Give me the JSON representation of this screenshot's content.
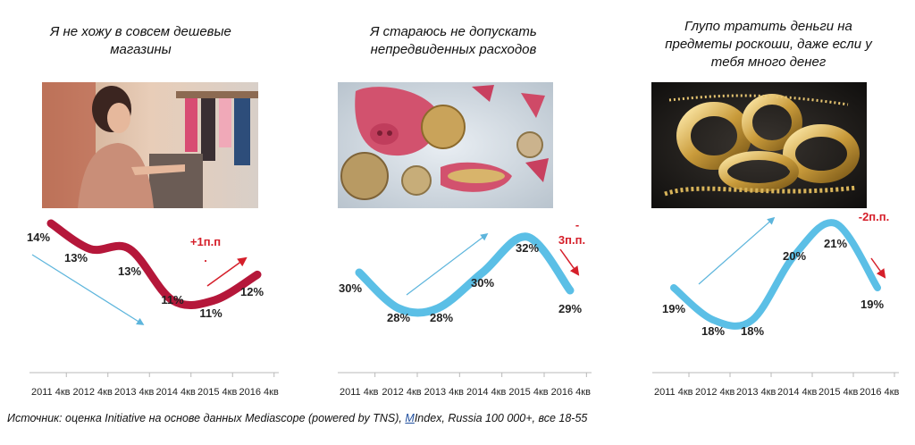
{
  "source": {
    "before": "Источник: оценка Initiative на основе данных Mediascope (powered by TNS), ",
    "link": "M",
    "after": "Index, Russia 100 000+, все 18-55"
  },
  "colors": {
    "red": "#b5173a",
    "blue": "#5bbfe6",
    "arrow_blue": "#5db5dc",
    "arrow_red": "#d51f2a"
  },
  "panels": [
    {
      "title_lines": [
        "Я не хожу в совсем дешевые",
        "магазины"
      ],
      "image": "woman-shopping-clothes-photo",
      "change_label": "+1п.п",
      "change_dot": ".",
      "trend_arrow": "arrow-down-right-blue"
    },
    {
      "title_lines": [
        "Я стараюсь не допускать",
        "непредвиденных расходов"
      ],
      "image": "piggy-bank-coins-photo",
      "change_label_lines": [
        "-",
        "3п.п."
      ],
      "trend_arrow": "arrow-up-right-blue"
    },
    {
      "title_lines": [
        "Глупо тратить деньги на",
        "предметы роскоши, даже если у",
        "тебя много денег"
      ],
      "image": "gold-jewelry-photo",
      "change_label": "-2п.п.",
      "trend_arrow": "arrow-up-right-blue"
    }
  ],
  "chart_data": [
    {
      "type": "line",
      "categories": [
        "2011 4кв",
        "2012 4кв",
        "2013 4кв",
        "2014 4кв",
        "2015 4кв",
        "2016 4кв"
      ],
      "series": [
        {
          "values": [
            14,
            13,
            13,
            11,
            11,
            12
          ]
        }
      ],
      "data_labels": [
        "14%",
        "13%",
        "13%",
        "11%",
        "11%",
        "12%"
      ],
      "color": "#b5173a",
      "annotation": "+1п.п"
    },
    {
      "type": "line",
      "categories": [
        "2011 4кв",
        "2012 4кв",
        "2013 4кв",
        "2014 4кв",
        "2015 4кв",
        "2016 4кв"
      ],
      "series": [
        {
          "values": [
            30,
            28,
            28,
            30,
            32,
            29
          ]
        }
      ],
      "data_labels": [
        "30%",
        "28%",
        "28%",
        "30%",
        "32%",
        "29%"
      ],
      "color": "#5bbfe6",
      "annotation": "-3п.п."
    },
    {
      "type": "line",
      "categories": [
        "2011 4кв",
        "2012 4кв",
        "2013 4кв",
        "2014 4кв",
        "2015 4кв",
        "2016 4кв"
      ],
      "series": [
        {
          "values": [
            19,
            18,
            18,
            20,
            21,
            19
          ]
        }
      ],
      "data_labels": [
        "19%",
        "18%",
        "18%",
        "20%",
        "21%",
        "19%"
      ],
      "color": "#5bbfe6",
      "annotation": "-2п.п."
    }
  ]
}
